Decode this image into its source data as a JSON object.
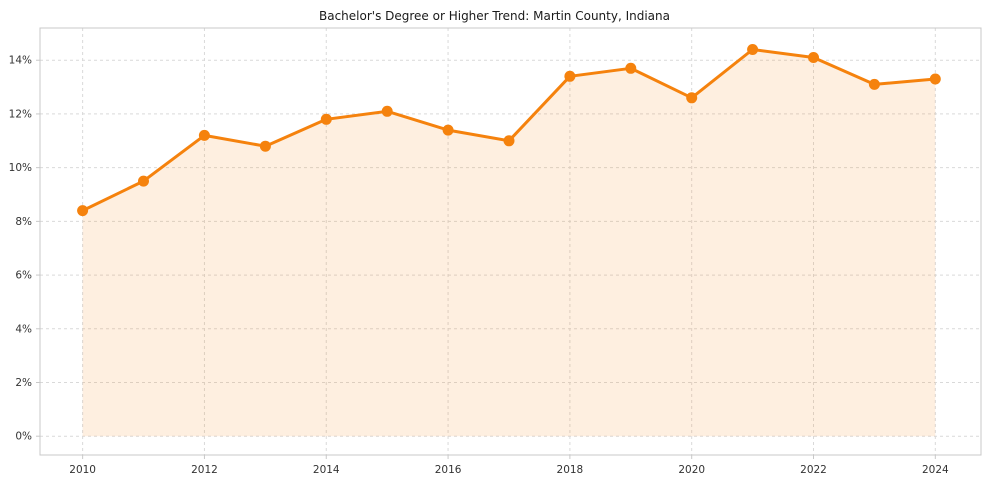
{
  "chart_data": {
    "type": "line",
    "title": "Bachelor's Degree or Higher Trend: Martin County, Indiana",
    "xlabel": "",
    "ylabel": "",
    "x": [
      2010,
      2011,
      2012,
      2013,
      2014,
      2015,
      2016,
      2017,
      2018,
      2019,
      2020,
      2021,
      2022,
      2023,
      2024
    ],
    "values": [
      8.4,
      9.5,
      11.2,
      10.8,
      11.8,
      12.1,
      11.4,
      11.0,
      13.4,
      13.7,
      12.6,
      14.4,
      14.1,
      13.1,
      13.3
    ],
    "unit": "%",
    "xticks": [
      2010,
      2012,
      2014,
      2016,
      2018,
      2020,
      2022,
      2024
    ],
    "xtick_labels": [
      "2010",
      "2012",
      "2014",
      "2016",
      "2018",
      "2020",
      "2022",
      "2024"
    ],
    "yticks": [
      0,
      2,
      4,
      6,
      8,
      10,
      12,
      14
    ],
    "ytick_labels": [
      "0%",
      "2%",
      "4%",
      "6%",
      "8%",
      "10%",
      "12%",
      "14%"
    ],
    "xlim": [
      2009.3,
      2024.75
    ],
    "ylim": [
      -0.7,
      15.2
    ],
    "grid": true,
    "grid_style": "dashed",
    "legend": "none",
    "marker": "circle",
    "colors": {
      "line": "#f5820d",
      "marker": "#f5820d",
      "fill": "rgba(246, 130, 16, 0.13)",
      "grid": "#d9d9d9",
      "spine": "#c8c8c8",
      "tick_text": "#333333",
      "title_text": "#1a1a1a",
      "background": "#ffffff"
    }
  }
}
